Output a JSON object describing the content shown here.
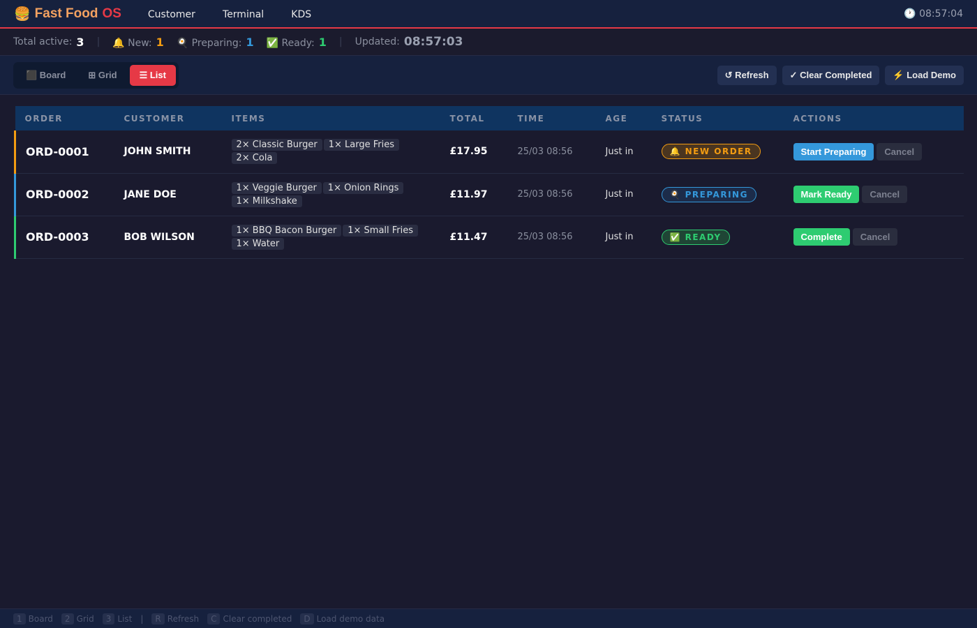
{
  "app": {
    "title_a": "Fast Food",
    "title_b": "OS",
    "logo_icon": "burger-icon",
    "clock": "🕐 08:57:04"
  },
  "nav": [
    "Customer",
    "Terminal",
    "KDS"
  ],
  "stats": {
    "total_label": "Total active:",
    "total": "3",
    "new_label": "🔔 New:",
    "new": "1",
    "preparing_label": "🍳 Preparing:",
    "preparing": "1",
    "ready_label": "✅ Ready:",
    "ready": "1",
    "updated_label": "Updated:",
    "updated": "08:57:03"
  },
  "views": [
    "⬛ Board",
    "⊞ Grid",
    "☰ List"
  ],
  "active_view": "List",
  "actions": [
    "↺ Refresh",
    "✓ Clear Completed",
    "⚡ Load Demo"
  ],
  "columns": [
    "ORDER",
    "CUSTOMER",
    "ITEMS",
    "TOTAL",
    "TIME",
    "AGE",
    "STATUS",
    "ACTIONS"
  ],
  "colors": {
    "new": "#f39c12",
    "preparing": "#3498db",
    "ready": "#2ecc71",
    "accent": "#e63946"
  },
  "orders": [
    {
      "id": "ORD-0001",
      "customer": "JOHN SMITH",
      "items": [
        "2× Classic Burger",
        "1× Large Fries",
        "2× Cola"
      ],
      "total": "£17.95",
      "time": "25/03 08:56",
      "age": "Just in",
      "status": "🔔 NEW ORDER",
      "action": "Start Preparing",
      "cancel": "Cancel"
    },
    {
      "id": "ORD-0002",
      "customer": "JANE DOE",
      "items": [
        "1× Veggie Burger",
        "1× Onion Rings",
        "1× Milkshake"
      ],
      "total": "£11.97",
      "time": "25/03 08:56",
      "age": "Just in",
      "status": "🍳 PREPARING",
      "action": "Mark Ready",
      "cancel": "Cancel"
    },
    {
      "id": "ORD-0003",
      "customer": "BOB WILSON",
      "items": [
        "1× BBQ Bacon Burger",
        "1× Small Fries",
        "1× Water"
      ],
      "total": "£11.47",
      "time": "25/03 08:56",
      "age": "Just in",
      "status": "✅ READY",
      "action": "Complete",
      "cancel": "Cancel"
    }
  ],
  "shortcuts": [
    {
      "key": "1",
      "label": "Board"
    },
    {
      "key": "2",
      "label": "Grid"
    },
    {
      "key": "3",
      "label": "List"
    },
    {
      "key": "R",
      "label": "Refresh"
    },
    {
      "key": "C",
      "label": "Clear completed"
    },
    {
      "key": "D",
      "label": "Load demo data"
    }
  ]
}
